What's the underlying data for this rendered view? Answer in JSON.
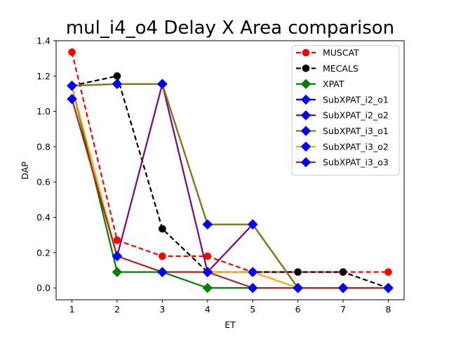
{
  "chart_data": {
    "type": "line",
    "title": "mul_i4_o4 Delay X Area comparison",
    "xlabel": "ET",
    "ylabel": "DAP",
    "x": [
      1,
      2,
      3,
      4,
      5,
      6,
      7,
      8
    ],
    "xlim": [
      0.65,
      8.35
    ],
    "ylim": [
      -0.067,
      1.4
    ],
    "xticks": [
      "1",
      "2",
      "3",
      "4",
      "5",
      "6",
      "7",
      "8"
    ],
    "yticks": [
      "0.0",
      "0.2",
      "0.4",
      "0.6",
      "0.8",
      "1.0",
      "1.2",
      "1.4"
    ],
    "legend_position": "top-right",
    "grid": false,
    "series": [
      {
        "name": "MUSCAT",
        "color": "#ff0000",
        "linestyle": "dashed",
        "marker": "circle",
        "x": [
          1,
          2,
          3,
          4,
          5,
          6,
          7,
          8
        ],
        "values": [
          1.335,
          0.27,
          0.18,
          0.18,
          0.09,
          0.09,
          0.09,
          0.09
        ]
      },
      {
        "name": "MECALS",
        "color": "#000000",
        "linestyle": "dashed",
        "marker": "circle",
        "x": [
          1,
          2,
          3,
          4,
          5,
          6,
          7,
          8
        ],
        "values": [
          1.145,
          1.2,
          0.335,
          0.09,
          0.09,
          0.09,
          0.09,
          0.0
        ]
      },
      {
        "name": "XPAT",
        "color": "#008000",
        "linestyle": "solid",
        "marker": "diamond",
        "x": [
          1,
          2,
          3,
          4,
          5,
          6,
          7,
          8
        ],
        "values": [
          1.145,
          0.09,
          0.09,
          0.0,
          0.0,
          0.0,
          0.0,
          0.0
        ]
      },
      {
        "name": "SubXPAT_i2_o1",
        "color": "#0000ff",
        "linestyle": "solid",
        "marker": "diamond",
        "x": [
          1,
          2,
          3,
          4,
          5,
          6,
          7,
          8
        ],
        "values": [
          1.145,
          1.155,
          1.155,
          0.36,
          0.36,
          0.0,
          0.0,
          0.0
        ]
      },
      {
        "name": "SubXPAT_i2_o2",
        "color": "#800080",
        "linestyle": "solid",
        "marker": "diamond",
        "x": [
          1,
          2,
          3,
          4,
          5,
          6,
          7,
          8
        ],
        "values": [
          1.07,
          0.18,
          1.155,
          0.09,
          0.36,
          0.0,
          0.0,
          0.0
        ]
      },
      {
        "name": "SubXPAT_i3_o1",
        "color": "#808000",
        "linestyle": "solid",
        "marker": "diamond",
        "x": [
          1,
          2,
          3,
          4,
          5,
          6,
          7,
          8
        ],
        "values": [
          1.145,
          1.155,
          1.155,
          0.36,
          0.36,
          0.0,
          0.0,
          0.0
        ]
      },
      {
        "name": "SubXPAT_i3_o2",
        "color": "#ffa500",
        "linestyle": "solid",
        "marker": "diamond",
        "x": [
          1,
          2,
          3,
          4,
          5,
          6,
          7,
          8
        ],
        "values": [
          1.145,
          0.18,
          0.09,
          0.09,
          0.09,
          0.0,
          0.0,
          0.0
        ]
      },
      {
        "name": "SubXPAT_i3_o3",
        "color": "#a52a2a",
        "linestyle": "solid",
        "marker": "diamond",
        "x": [
          1,
          2,
          3,
          4,
          5,
          6,
          7,
          8
        ],
        "values": [
          1.07,
          0.18,
          0.09,
          0.09,
          0.0,
          0.0,
          0.0,
          0.0
        ]
      }
    ],
    "marker_fill_colors": {
      "circle": "series",
      "diamond": "#0000ff",
      "XPAT": "#008000"
    }
  }
}
